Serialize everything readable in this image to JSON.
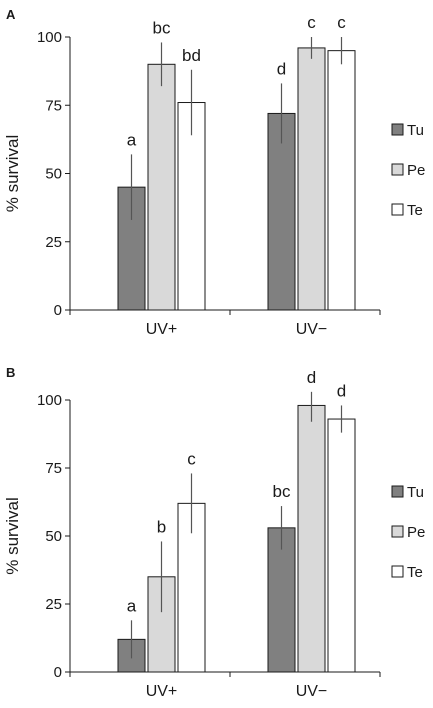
{
  "chart_data": [
    {
      "panel": "A",
      "type": "bar",
      "ylabel": "% survival",
      "ylim": [
        0,
        100
      ],
      "yticks": [
        0,
        25,
        50,
        75,
        100
      ],
      "categories": [
        "UV+",
        "UV−"
      ],
      "series": [
        {
          "name": "Tu",
          "color": "#808080",
          "values": [
            45,
            72
          ],
          "errors": [
            12,
            11
          ],
          "sig": [
            "a",
            "d"
          ]
        },
        {
          "name": "Pe",
          "color": "#d9d9d9",
          "values": [
            90,
            96
          ],
          "errors": [
            8,
            4
          ],
          "sig": [
            "bc",
            "c"
          ]
        },
        {
          "name": "Te",
          "color": "#ffffff",
          "values": [
            76,
            95
          ],
          "errors": [
            12,
            5
          ],
          "sig": [
            "bd",
            "c"
          ]
        }
      ],
      "legend_position": "right"
    },
    {
      "panel": "B",
      "type": "bar",
      "ylabel": "% survival",
      "ylim": [
        0,
        100
      ],
      "yticks": [
        0,
        25,
        50,
        75,
        100
      ],
      "categories": [
        "UV+",
        "UV−"
      ],
      "series": [
        {
          "name": "Tu",
          "color": "#808080",
          "values": [
            12,
            53
          ],
          "errors": [
            7,
            8
          ],
          "sig": [
            "a",
            "bc"
          ]
        },
        {
          "name": "Pe",
          "color": "#d9d9d9",
          "values": [
            35,
            98
          ],
          "errors": [
            13,
            6
          ],
          "sig": [
            "b",
            "d"
          ]
        },
        {
          "name": "Te",
          "color": "#ffffff",
          "values": [
            62,
            93
          ],
          "errors": [
            11,
            5
          ],
          "sig": [
            "c",
            "d"
          ]
        }
      ],
      "legend_position": "right"
    }
  ]
}
